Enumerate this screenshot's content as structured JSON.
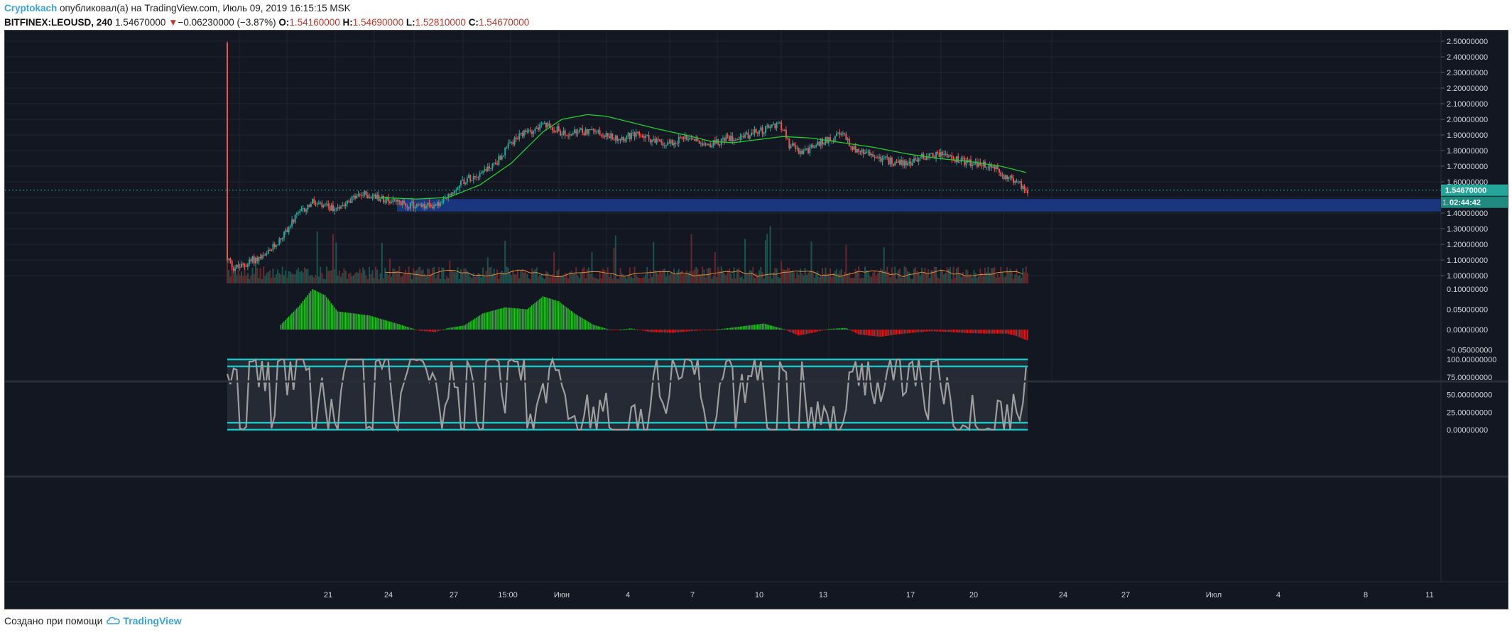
{
  "header": {
    "author": "Cryptokach",
    "published": "опубликовал(а) на TradingView.com, Июль 09, 2019 16:15:15 MSK",
    "symbol": "BITFINEX:LEOUSD, 240",
    "last": "1.54670000",
    "change_arrow": "▼",
    "change": "−0.06230000 (−3.87%)",
    "o_label": "O:",
    "o_value": "1.54160000",
    "h_label": "H:",
    "h_value": "1.54690000",
    "l_label": "L:",
    "l_value": "1.52810000",
    "c_label": "C:",
    "c_value": "1.54670000"
  },
  "price_axis": {
    "labels": [
      "2.50000000",
      "2.40000000",
      "2.30000000",
      "2.20000000",
      "2.10000000",
      "2.00000000",
      "1.90000000",
      "1.80000000",
      "1.70000000",
      "1.60000000",
      "1.40000000",
      "1.30000000",
      "1.20000000",
      "1.10000000",
      "1.00000000"
    ],
    "current_price": "1.54670000",
    "countdown": "02:44:42",
    "partial_label": "1."
  },
  "macd_axis": {
    "labels": [
      "0.10000000",
      "0.05000000",
      "0.00000000",
      "−0.05000000"
    ]
  },
  "stoch_axis": {
    "labels": [
      "100.00000000",
      "75.00000000",
      "50.00000000",
      "25.00000000",
      "0.00000000"
    ]
  },
  "time_axis": {
    "labels": [
      "21",
      "24",
      "27",
      "15:00",
      "Июн",
      "4",
      "7",
      "10",
      "13",
      "17",
      "20",
      "24",
      "27",
      "Июл",
      "4",
      "8",
      "11"
    ]
  },
  "footer": {
    "created_with": "Создано при помощи",
    "brand": "TradingView"
  },
  "colors": {
    "up": "#26a69a",
    "down": "#ef5350",
    "ma": "#22cc33",
    "support_zone": "#1c3a8a",
    "macd_pos": "#22bb22",
    "macd_neg": "#cc1f1f",
    "stoch": "#9e9e9e",
    "stoch_band": "#18c5c5",
    "bg": "#131722"
  },
  "chart_data": {
    "type": "candlestick",
    "symbol": "BITFINEX:LEOUSD",
    "interval": "240",
    "ylim": [
      0.95,
      2.55
    ],
    "support_zone": [
      1.41,
      1.49
    ],
    "price_keypoints": [
      [
        0,
        2.49
      ],
      [
        1,
        1.1
      ],
      [
        4,
        1.05
      ],
      [
        10,
        1.06
      ],
      [
        16,
        1.1
      ],
      [
        24,
        1.12
      ],
      [
        34,
        1.24
      ],
      [
        44,
        1.38
      ],
      [
        54,
        1.47
      ],
      [
        60,
        1.44
      ],
      [
        68,
        1.43
      ],
      [
        76,
        1.48
      ],
      [
        86,
        1.52
      ],
      [
        96,
        1.5
      ],
      [
        110,
        1.46
      ],
      [
        124,
        1.44
      ],
      [
        136,
        1.46
      ],
      [
        148,
        1.6
      ],
      [
        160,
        1.66
      ],
      [
        170,
        1.72
      ],
      [
        180,
        1.85
      ],
      [
        190,
        1.92
      ],
      [
        200,
        1.96
      ],
      [
        206,
        1.95
      ],
      [
        214,
        1.9
      ],
      [
        230,
        1.93
      ],
      [
        246,
        1.88
      ],
      [
        262,
        1.9
      ],
      [
        276,
        1.84
      ],
      [
        292,
        1.89
      ],
      [
        306,
        1.84
      ],
      [
        318,
        1.88
      ],
      [
        330,
        1.9
      ],
      [
        342,
        1.94
      ],
      [
        350,
        1.98
      ],
      [
        356,
        1.84
      ],
      [
        364,
        1.78
      ],
      [
        372,
        1.83
      ],
      [
        382,
        1.88
      ],
      [
        390,
        1.9
      ],
      [
        398,
        1.8
      ],
      [
        408,
        1.77
      ],
      [
        420,
        1.73
      ],
      [
        432,
        1.72
      ],
      [
        440,
        1.76
      ],
      [
        452,
        1.78
      ],
      [
        462,
        1.74
      ],
      [
        474,
        1.71
      ],
      [
        484,
        1.7
      ],
      [
        492,
        1.64
      ],
      [
        500,
        1.6
      ],
      [
        506,
        1.55
      ]
    ],
    "ma_keypoints": [
      [
        96,
        1.5
      ],
      [
        120,
        1.49
      ],
      [
        140,
        1.5
      ],
      [
        160,
        1.58
      ],
      [
        180,
        1.72
      ],
      [
        200,
        1.92
      ],
      [
        212,
        2.0
      ],
      [
        228,
        2.03
      ],
      [
        240,
        2.02
      ],
      [
        256,
        1.98
      ],
      [
        272,
        1.94
      ],
      [
        290,
        1.9
      ],
      [
        306,
        1.86
      ],
      [
        320,
        1.85
      ],
      [
        336,
        1.87
      ],
      [
        352,
        1.89
      ],
      [
        370,
        1.88
      ],
      [
        390,
        1.85
      ],
      [
        410,
        1.82
      ],
      [
        430,
        1.78
      ],
      [
        450,
        1.75
      ],
      [
        470,
        1.73
      ],
      [
        490,
        1.7
      ],
      [
        506,
        1.66
      ]
    ],
    "macd_keypoints": [
      [
        34,
        0.012
      ],
      [
        46,
        0.06
      ],
      [
        54,
        0.1
      ],
      [
        62,
        0.085
      ],
      [
        70,
        0.045
      ],
      [
        90,
        0.035
      ],
      [
        110,
        0.012
      ],
      [
        122,
        -0.003
      ],
      [
        132,
        -0.006
      ],
      [
        140,
        0.004
      ],
      [
        150,
        0.01
      ],
      [
        162,
        0.04
      ],
      [
        176,
        0.055
      ],
      [
        190,
        0.05
      ],
      [
        200,
        0.082
      ],
      [
        210,
        0.07
      ],
      [
        220,
        0.04
      ],
      [
        232,
        0.012
      ],
      [
        244,
        -0.002
      ],
      [
        256,
        0.003
      ],
      [
        268,
        -0.006
      ],
      [
        282,
        -0.008
      ],
      [
        296,
        -0.003
      ],
      [
        310,
        0.0
      ],
      [
        326,
        0.008
      ],
      [
        340,
        0.015
      ],
      [
        352,
        0.002
      ],
      [
        362,
        -0.015
      ],
      [
        372,
        -0.007
      ],
      [
        382,
        0.002
      ],
      [
        392,
        0.004
      ],
      [
        400,
        -0.012
      ],
      [
        414,
        -0.018
      ],
      [
        424,
        -0.012
      ],
      [
        434,
        -0.008
      ],
      [
        446,
        -0.004
      ],
      [
        458,
        -0.006
      ],
      [
        470,
        -0.009
      ],
      [
        482,
        -0.01
      ],
      [
        494,
        -0.01
      ],
      [
        500,
        -0.016
      ],
      [
        506,
        -0.026
      ]
    ],
    "stoch_levels": [
      0,
      10,
      90,
      100
    ],
    "n_bars": 508
  }
}
